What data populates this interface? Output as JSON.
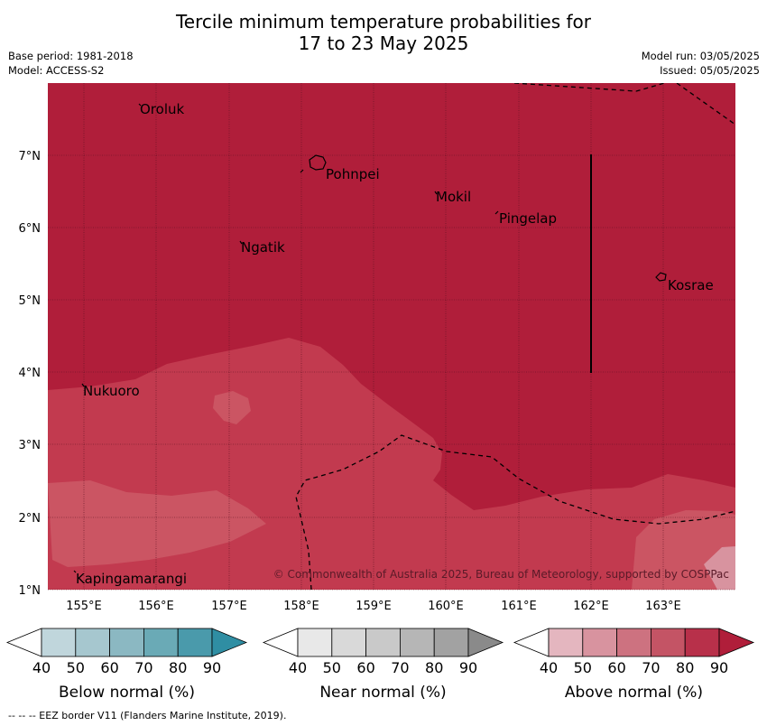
{
  "header": {
    "title_line1": "Tercile minimum temperature probabilities for",
    "title_line2": "17 to 23 May 2025",
    "base_period": "Base period: 1981-2018",
    "model": "Model: ACCESS-S2",
    "model_run": "Model run: 03/05/2025",
    "issued": "Issued: 05/05/2025"
  },
  "map": {
    "lat_labels": [
      "7°N",
      "6°N",
      "5°N",
      "4°N",
      "3°N",
      "2°N",
      "1°N"
    ],
    "lon_labels": [
      "155°E",
      "156°E",
      "157°E",
      "158°E",
      "159°E",
      "160°E",
      "161°E",
      "162°E",
      "163°E"
    ],
    "places": [
      "Oroluk",
      "Pohnpei",
      "Mokil",
      "Pingelap",
      "Ngatik",
      "Kosrae",
      "Nukuoro",
      "Kapingamarangi"
    ],
    "copyright": "© Commonwealth of Australia 2025, Bureau of Meteorology, supported by COSPPac",
    "colors": {
      "above_80": "#b01e3a",
      "above_70": "#c23a4f",
      "above_60": "#cb5563",
      "land": "#ffffff",
      "grid": "#5a1020"
    }
  },
  "colorbars": [
    {
      "label": "Below normal (%)",
      "ticks": [
        "40",
        "50",
        "60",
        "70",
        "80",
        "90"
      ],
      "colors": [
        "#c0d6dc",
        "#a6c7cf",
        "#8bb8c2",
        "#6aaab6",
        "#4a9aab",
        "#2f8ea3"
      ]
    },
    {
      "label": "Near normal (%)",
      "ticks": [
        "40",
        "50",
        "60",
        "70",
        "80",
        "90"
      ],
      "colors": [
        "#e8e8e8",
        "#d9d9d9",
        "#c9c9c9",
        "#b6b6b6",
        "#a2a2a2",
        "#8a8a8a"
      ]
    },
    {
      "label": "Above normal (%)",
      "ticks": [
        "40",
        "50",
        "60",
        "70",
        "80",
        "90"
      ],
      "colors": [
        "#e4b6bf",
        "#d8939f",
        "#cd7280",
        "#c45465",
        "#b8304a",
        "#b01e3a"
      ]
    }
  ],
  "footer": "--  --  -- EEZ border V11 (Flanders Marine Institute, 2019)."
}
